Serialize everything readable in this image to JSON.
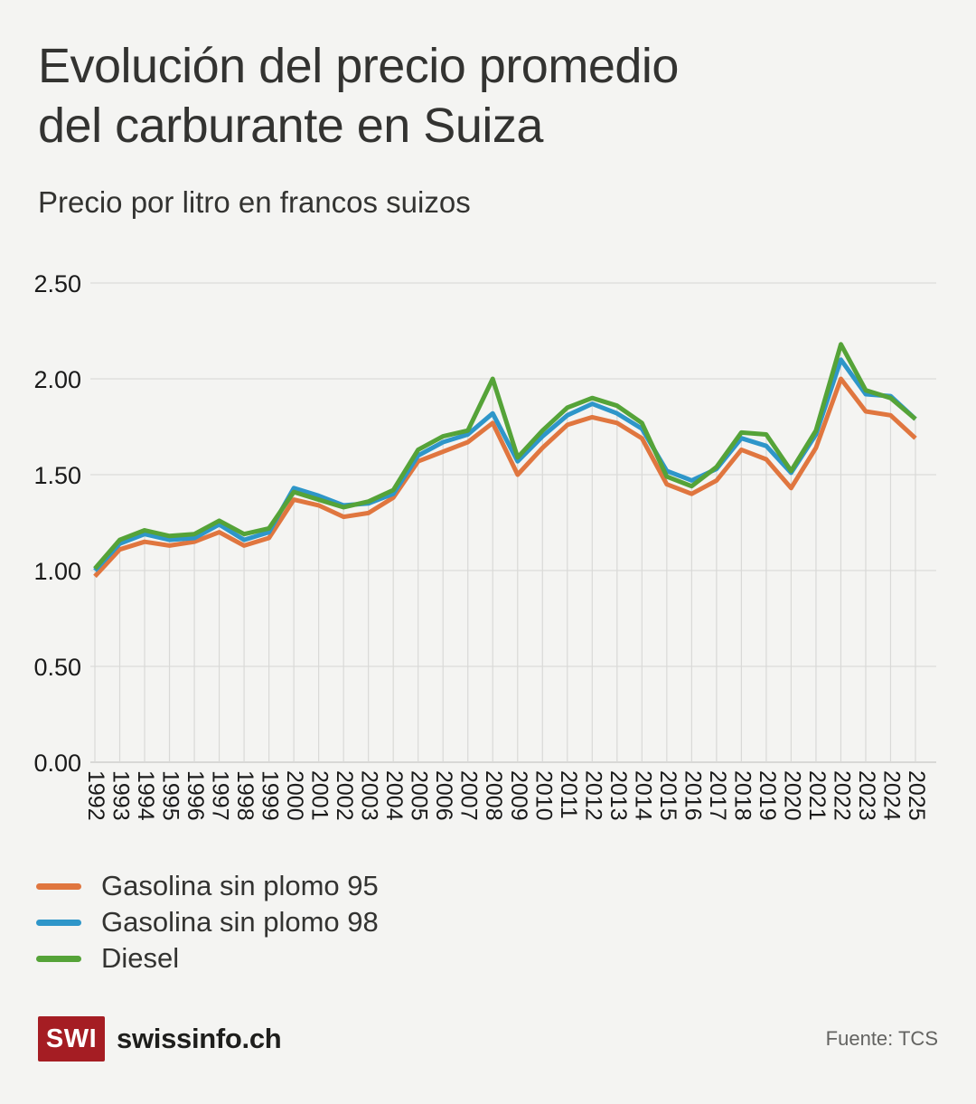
{
  "header": {
    "title_lines": [
      "Evolución del precio promedio",
      "del carburante en Suiza"
    ],
    "subtitle": "Precio por litro en francos suizos"
  },
  "chart_data": {
    "type": "line",
    "x": [
      1992,
      1993,
      1994,
      1995,
      1996,
      1997,
      1998,
      1999,
      2000,
      2001,
      2002,
      2003,
      2004,
      2005,
      2006,
      2007,
      2008,
      2009,
      2010,
      2011,
      2012,
      2013,
      2014,
      2015,
      2016,
      2017,
      2018,
      2019,
      2020,
      2021,
      2022,
      2023,
      2024,
      2025
    ],
    "series": [
      {
        "name": "Gasolina sin plomo 95",
        "color": "#e0763f",
        "values": [
          0.97,
          1.11,
          1.15,
          1.13,
          1.15,
          1.2,
          1.13,
          1.17,
          1.37,
          1.34,
          1.28,
          1.3,
          1.38,
          1.57,
          1.62,
          1.67,
          1.77,
          1.5,
          1.64,
          1.76,
          1.8,
          1.77,
          1.69,
          1.45,
          1.4,
          1.47,
          1.63,
          1.58,
          1.43,
          1.64,
          2.0,
          1.83,
          1.81,
          1.69
        ]
      },
      {
        "name": "Gasolina sin plomo 98",
        "color": "#2e96c9",
        "values": [
          1.0,
          1.14,
          1.19,
          1.16,
          1.17,
          1.24,
          1.16,
          1.2,
          1.43,
          1.39,
          1.34,
          1.35,
          1.4,
          1.6,
          1.67,
          1.71,
          1.82,
          1.57,
          1.7,
          1.81,
          1.87,
          1.82,
          1.74,
          1.52,
          1.47,
          1.53,
          1.69,
          1.65,
          1.51,
          1.71,
          2.1,
          1.92,
          1.91,
          1.79
        ]
      },
      {
        "name": "Diesel",
        "color": "#55a338",
        "values": [
          1.01,
          1.16,
          1.21,
          1.18,
          1.19,
          1.26,
          1.19,
          1.22,
          1.41,
          1.37,
          1.33,
          1.36,
          1.42,
          1.63,
          1.7,
          1.73,
          2.0,
          1.59,
          1.73,
          1.85,
          1.9,
          1.86,
          1.77,
          1.49,
          1.44,
          1.54,
          1.72,
          1.71,
          1.52,
          1.73,
          2.18,
          1.94,
          1.9,
          1.79
        ]
      }
    ],
    "title": "Evolución del precio promedio del carburante en Suiza",
    "xlabel": "",
    "ylabel": "Precio por litro en francos suizos",
    "ylim": [
      0,
      2.5
    ],
    "yticks": [
      "0.00",
      "0.50",
      "1.00",
      "1.50",
      "2.00",
      "2.50"
    ],
    "grid": "horizontal full-width; vertical tick line per year up to top series",
    "x_tick_rotation": 90,
    "legend_position": "bottom-left"
  },
  "footer": {
    "logo_text": "SWI",
    "brand": "swissinfo.ch",
    "source": "Fuente: TCS"
  },
  "colors": {
    "background": "#f4f4f2",
    "logo_red": "#a51d23",
    "gridline": "#e0e0de",
    "baseline": "#cfcfcd",
    "axis_text": "#1a1a1a"
  }
}
